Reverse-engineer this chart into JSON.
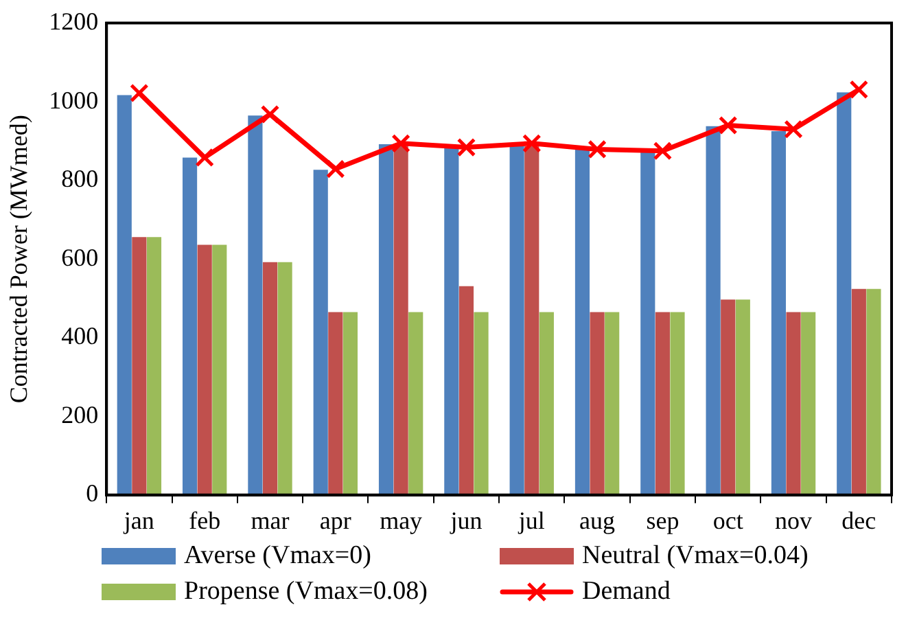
{
  "chart_data": {
    "type": "bar",
    "ylabel": "Contracted Power (MWmed)",
    "categories": [
      "jan",
      "feb",
      "mar",
      "apr",
      "may",
      "jun",
      "jul",
      "aug",
      "sep",
      "oct",
      "nov",
      "dec"
    ],
    "series": [
      {
        "name": "Averse (Vmax=0)",
        "color": "#4f81bd",
        "values": [
          1017,
          858,
          965,
          827,
          892,
          885,
          887,
          881,
          875,
          938,
          925,
          1024
        ]
      },
      {
        "name": "Neutral (Vmax=0.04)",
        "color": "#c0504d",
        "values": [
          656,
          636,
          592,
          465,
          892,
          531,
          887,
          465,
          465,
          497,
          465,
          524
        ]
      },
      {
        "name": "Propense (Vmax=0.08)",
        "color": "#9bbb59",
        "values": [
          656,
          636,
          592,
          465,
          465,
          465,
          465,
          465,
          465,
          497,
          465,
          524
        ]
      },
      {
        "name": "Demand",
        "type": "line",
        "color": "#ff0000",
        "marker": "cross",
        "values": [
          1022,
          858,
          968,
          829,
          894,
          884,
          894,
          879,
          875,
          940,
          930,
          1031
        ]
      }
    ],
    "ylim": [
      0,
      1200
    ],
    "yticks": [
      0,
      200,
      400,
      600,
      800,
      1000,
      1200
    ],
    "grid": false,
    "legend": "bottom"
  }
}
